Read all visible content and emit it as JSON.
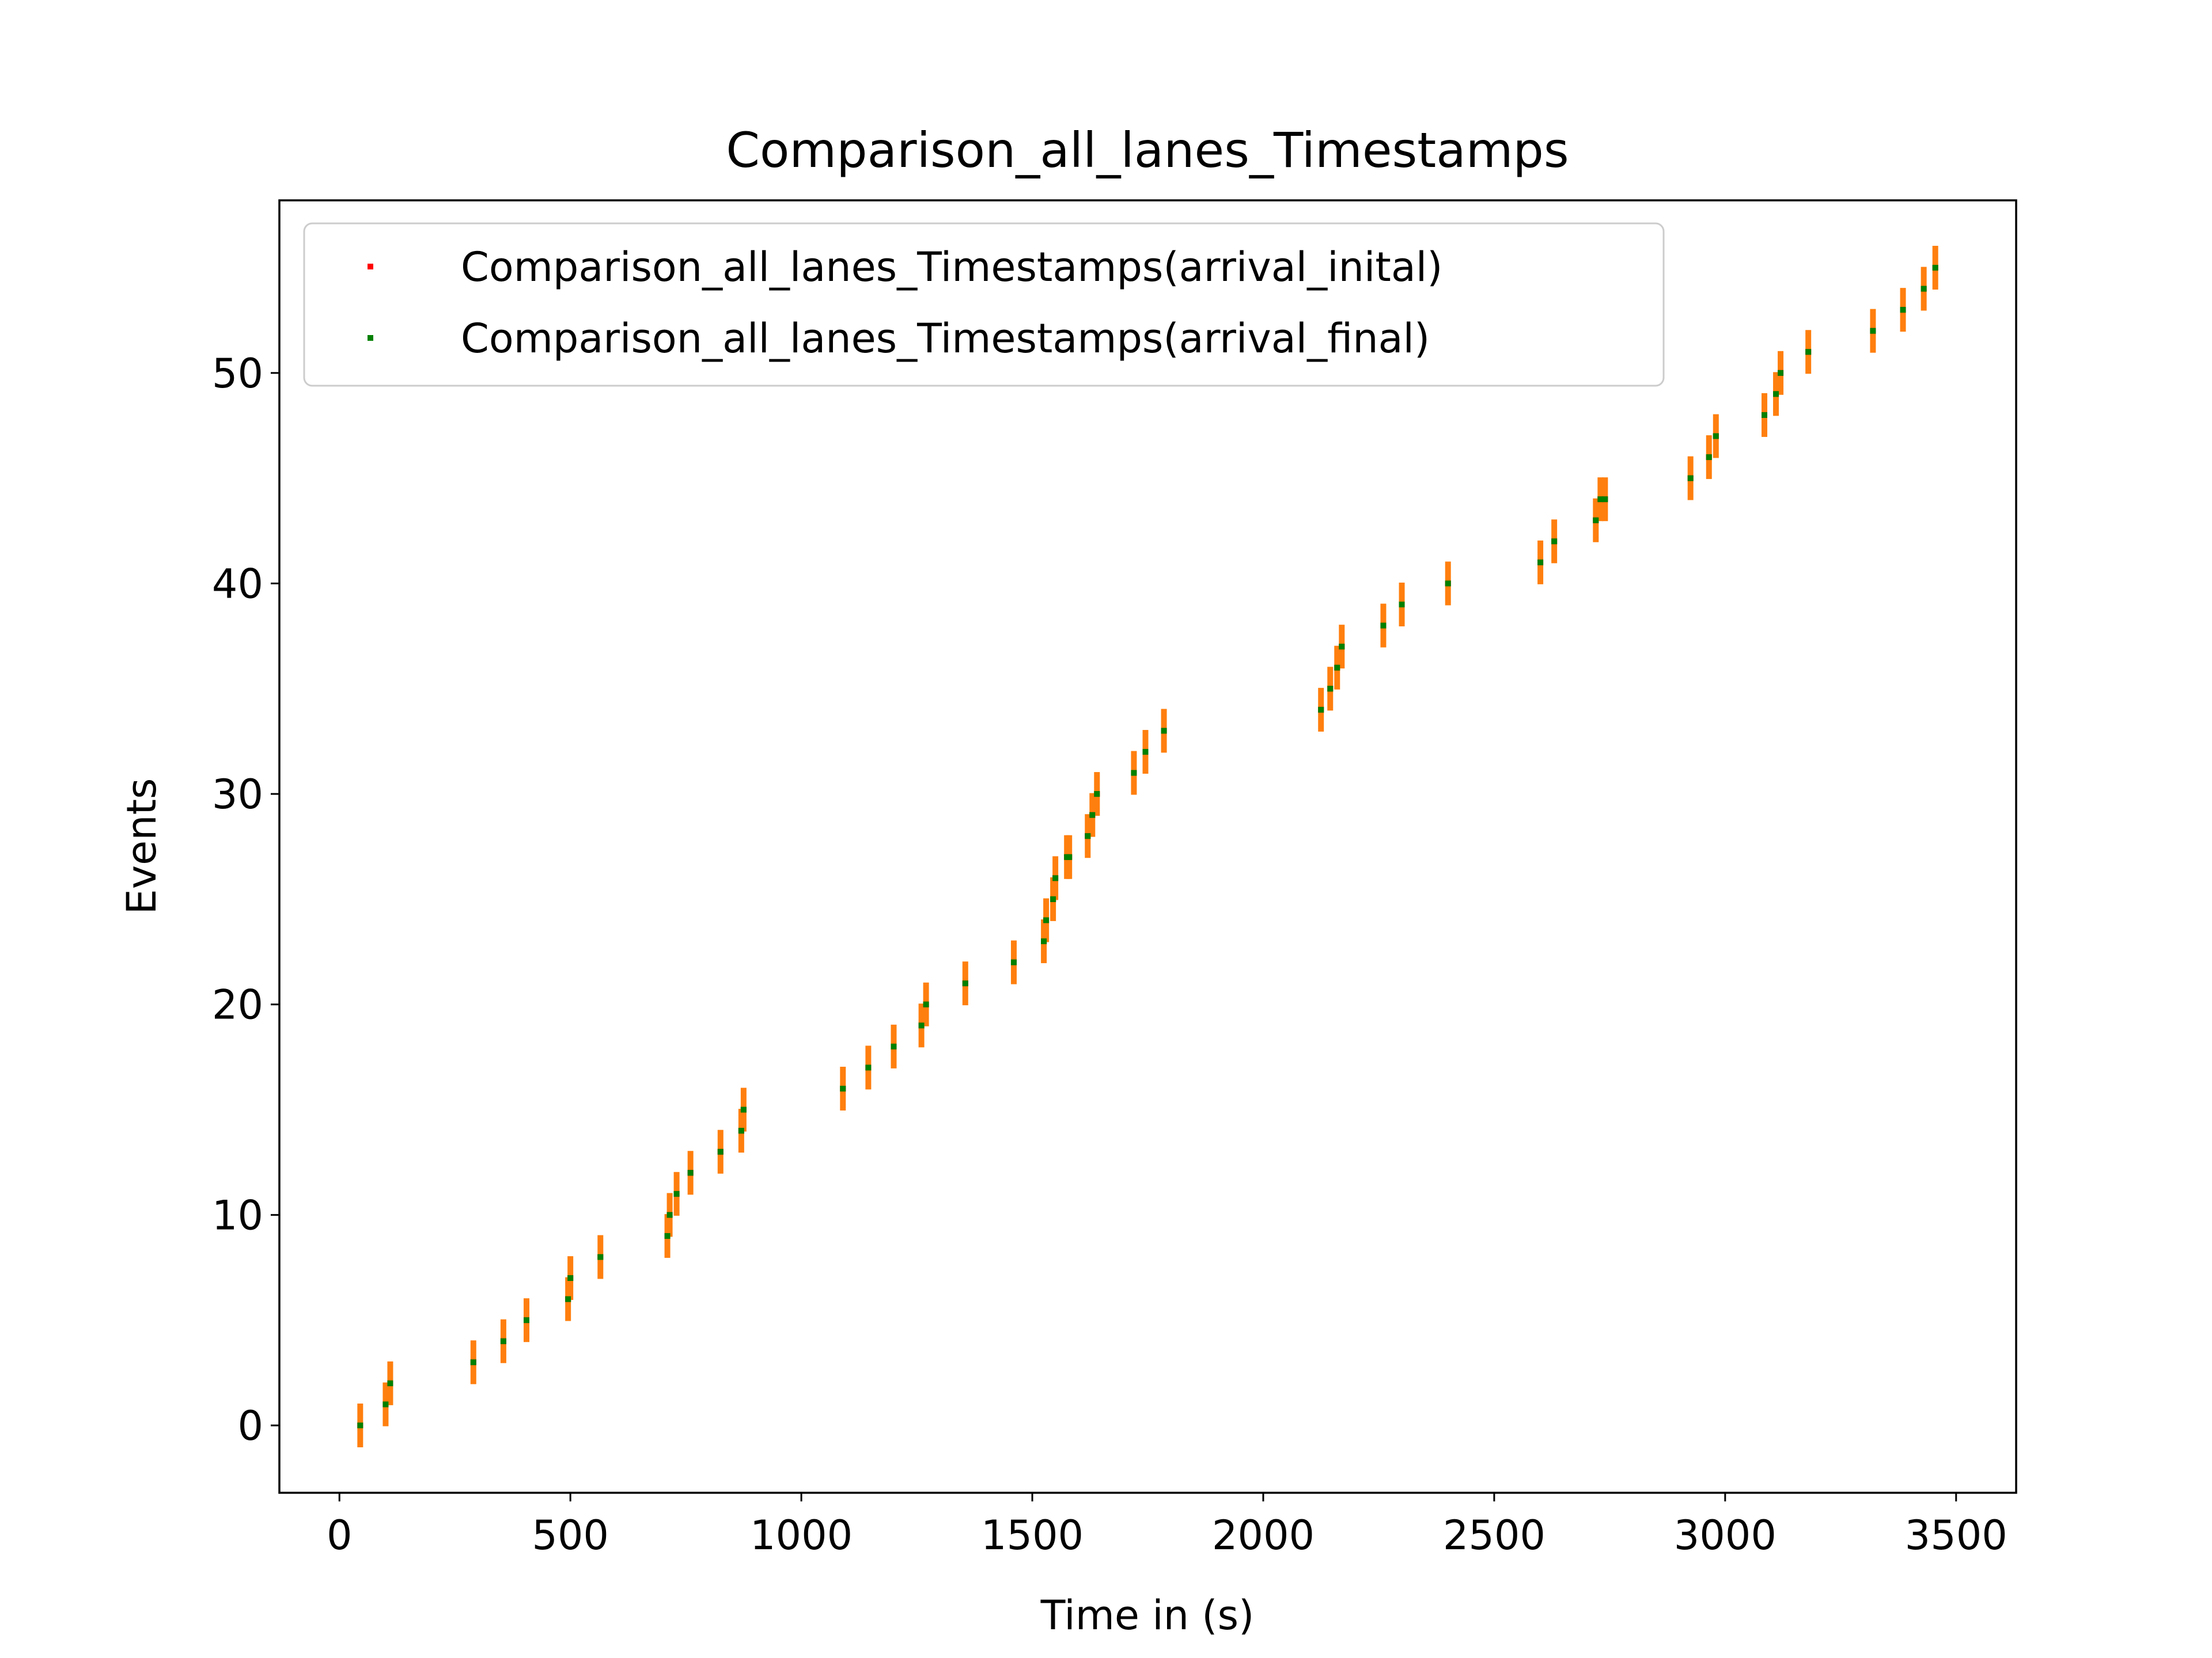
{
  "chart_data": {
    "type": "scatter",
    "title": "Comparison_all_lanes_Timestamps",
    "xlabel": "Time in (s)",
    "ylabel": "Events",
    "xlim": [
      -130,
      3630
    ],
    "ylim": [
      -3.2,
      58.2
    ],
    "xticks": [
      0,
      500,
      1000,
      1500,
      2000,
      2500,
      3000,
      3500
    ],
    "yticks": [
      0,
      10,
      20,
      30,
      40,
      50
    ],
    "grid": false,
    "legend_position": "upper-left",
    "series": [
      {
        "name": "Comparison_all_lanes_Timestamps(arrival_inital)",
        "color": "#ff0000",
        "marker": "point",
        "x": [
          45,
          100,
          110,
          290,
          355,
          405,
          495,
          500,
          565,
          710,
          715,
          730,
          760,
          825,
          870,
          875,
          1090,
          1145,
          1200,
          1260,
          1270,
          1355,
          1460,
          1525,
          1530,
          1545,
          1550,
          1575,
          1580,
          1620,
          1630,
          1640,
          1720,
          1745,
          1785,
          2125,
          2145,
          2160,
          2170,
          2260,
          2300,
          2400,
          2600,
          2630,
          2720,
          2730,
          2740,
          2925,
          2965,
          2980,
          3085,
          3110,
          3120,
          3180,
          3320,
          3385,
          3430,
          3455
        ],
        "y": [
          0,
          1,
          2,
          3,
          4,
          5,
          6,
          7,
          8,
          9,
          10,
          11,
          12,
          13,
          14,
          15,
          16,
          17,
          18,
          19,
          20,
          21,
          22,
          23,
          24,
          25,
          26,
          27,
          27,
          28,
          29,
          30,
          31,
          32,
          33,
          34,
          35,
          36,
          37,
          38,
          39,
          40,
          41,
          42,
          43,
          44,
          44,
          45,
          46,
          47,
          48,
          49,
          50,
          51,
          52,
          53,
          54,
          55
        ]
      },
      {
        "name": "Comparison_all_lanes_Timestamps(arrival_final)",
        "color": "#008000",
        "marker": "point",
        "x": [
          45,
          100,
          110,
          290,
          355,
          405,
          495,
          500,
          565,
          710,
          715,
          730,
          760,
          825,
          870,
          875,
          1090,
          1145,
          1200,
          1260,
          1270,
          1355,
          1460,
          1525,
          1530,
          1545,
          1550,
          1575,
          1580,
          1620,
          1630,
          1640,
          1720,
          1745,
          1785,
          2125,
          2145,
          2160,
          2170,
          2260,
          2300,
          2400,
          2600,
          2630,
          2720,
          2730,
          2740,
          2925,
          2965,
          2980,
          3085,
          3110,
          3120,
          3180,
          3320,
          3385,
          3430,
          3455
        ],
        "y": [
          0,
          1,
          2,
          3,
          4,
          5,
          6,
          7,
          8,
          9,
          10,
          11,
          12,
          13,
          14,
          15,
          16,
          17,
          18,
          19,
          20,
          21,
          22,
          23,
          24,
          25,
          26,
          27,
          27,
          28,
          29,
          30,
          31,
          32,
          33,
          34,
          35,
          36,
          37,
          38,
          39,
          40,
          41,
          42,
          43,
          44,
          44,
          45,
          46,
          47,
          48,
          49,
          50,
          51,
          52,
          53,
          54,
          55
        ]
      }
    ],
    "error_bar_color": "#ff7f0e"
  }
}
